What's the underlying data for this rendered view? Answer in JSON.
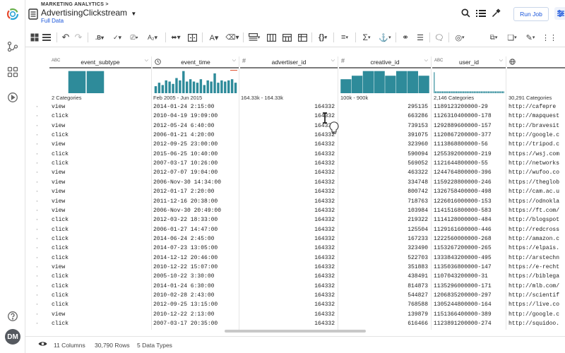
{
  "header": {
    "breadcrumb": "MARKETING ANALYTICS >",
    "title": "AdvertisingClickstream",
    "subtitle": "Full Data",
    "run_job_label": "Run Job"
  },
  "columns": [
    {
      "type_icon": "ABC",
      "name": "event_subtype",
      "summary": "2 Categories"
    },
    {
      "type_icon": "clock",
      "name": "event_time",
      "summary": "Feb 2005 - Jun 2015"
    },
    {
      "type_icon": "#",
      "name": "advertiser_id",
      "summary": "164.33k - 164.33k"
    },
    {
      "type_icon": "#",
      "name": "creative_id",
      "summary": "100k - 900k"
    },
    {
      "type_icon": "ABC",
      "name": "user_id",
      "summary": "2,146 Categories"
    },
    {
      "type_icon": "globe",
      "name": "",
      "summary": "30,291 Categories"
    }
  ],
  "rows": [
    [
      "view",
      "2014-01-24 2:15:00",
      "164332",
      "295135",
      "1189123200000-29",
      "http://cafepre"
    ],
    [
      "click",
      "2010-04-19 19:09:00",
      "164332",
      "663286",
      "1126310400000-178",
      "http://mapquest"
    ],
    [
      "view",
      "2012-05-24 6:40:00",
      "164332",
      "739153",
      "1292889600000-157",
      "http://bravesit"
    ],
    [
      "click",
      "2006-01-21 4:20:00",
      "164332",
      "391075",
      "1120867200000-377",
      "http://google.c"
    ],
    [
      "view",
      "2012-09-25 23:00:00",
      "164332",
      "323960",
      "1113868800000-56",
      "http://tripod.c"
    ],
    [
      "click",
      "2015-06-25 10:40:00",
      "164332",
      "590094",
      "1255392000000-219",
      "https://wsj.com"
    ],
    [
      "click",
      "2007-03-17 10:26:00",
      "164332",
      "569052",
      "1121644800000-55",
      "http://networks"
    ],
    [
      "view",
      "2012-07-07 19:04:00",
      "164332",
      "463322",
      "1244764800000-396",
      "http://wufoo.co"
    ],
    [
      "view",
      "2006-Nov-30 14:34:00",
      "164332",
      "334748",
      "1159228800000-246",
      "https://theglob"
    ],
    [
      "view",
      "2012-01-17 2:20:00",
      "164332",
      "800742",
      "1326758400000-498",
      "http://cam.ac.u"
    ],
    [
      "view",
      "2011-12-16 20:38:00",
      "164332",
      "718763",
      "1226016000000-153",
      "https://odnokla"
    ],
    [
      "view",
      "2006-Nov-30 20:49:00",
      "164332",
      "103984",
      "1141516800000-583",
      "https://ft.com/"
    ],
    [
      "click",
      "2012-03-22 18:33:00",
      "164332",
      "219322",
      "1114128000000-484",
      "http://blogspot"
    ],
    [
      "click",
      "2006-01-27 14:47:00",
      "164332",
      "125504",
      "1129161600000-446",
      "http://redcross"
    ],
    [
      "click",
      "2014-06-24 2:45:00",
      "164332",
      "167233",
      "1222560000000-268",
      "http://amazon.c"
    ],
    [
      "click",
      "2014-07-23 13:05:00",
      "164332",
      "323490",
      "1153267200000-265",
      "https://elpais."
    ],
    [
      "click",
      "2014-12-12 20:46:00",
      "164332",
      "522703",
      "1333843200000-495",
      "http://arstechn"
    ],
    [
      "view",
      "2010-12-22 15:07:00",
      "164332",
      "351883",
      "1135036800000-147",
      "https://e-recht"
    ],
    [
      "click",
      "2005-10-22 3:30:00",
      "164332",
      "438491",
      "1107043200000-31",
      "https://biblega"
    ],
    [
      "click",
      "2014-01-24 6:30:00",
      "164332",
      "814873",
      "1135296000000-171",
      "http://mlb.com/"
    ],
    [
      "click",
      "2010-02-28 2:43:00",
      "164332",
      "544827",
      "1206835200000-297",
      "http://scientif"
    ],
    [
      "click",
      "2012-09-25 13:15:00",
      "164332",
      "768588",
      "1305244800000-164",
      "https://live.co"
    ],
    [
      "view",
      "2010-12-22 2:13:00",
      "164332",
      "139879",
      "1151366400000-389",
      "http://google.c"
    ],
    [
      "click",
      "2007-03-17 20:35:00",
      "164332",
      "616466",
      "1123891200000-274",
      "http://squidoo."
    ]
  ],
  "histograms": {
    "event_subtype": [
      0.95,
      0.95
    ],
    "event_time": [
      0.3,
      0.45,
      0.35,
      0.55,
      0.5,
      0.4,
      0.65,
      0.55,
      0.95,
      0.5,
      0.6,
      0.5,
      0.45,
      0.6,
      0.35,
      0.55,
      0.5,
      0.85,
      0.45,
      0.55,
      0.5,
      0.55,
      0.6,
      0.45
    ],
    "creative_id": [
      0.6,
      0.75,
      0.95,
      0.95,
      0.75,
      0.95,
      0.95,
      0.75
    ],
    "user_id": [
      0.9,
      0.08,
      0.08,
      0.08,
      0.08,
      0.08,
      0.08,
      0.08,
      0.08,
      0.08,
      0.08,
      0.08,
      0.08,
      0.08,
      0.08,
      0.08,
      0.08,
      0.08,
      0.08,
      0.08,
      0.08,
      0.08,
      0.08,
      0.08,
      0.08,
      0.08,
      0.08,
      0.08,
      0.08,
      0.08,
      0.08,
      0.08,
      0.08,
      0.08,
      0.08,
      0.08,
      0.08,
      0.08,
      0.08,
      0.08,
      0.08,
      0.08,
      0.08,
      0.08,
      0.08,
      0.08,
      0.08,
      0.08,
      0.08,
      0.08,
      0.08,
      0.08,
      0.08,
      0.08,
      0.08,
      0.08,
      0.08,
      0.08,
      0.08,
      0.08
    ]
  },
  "footer": {
    "columns": "11 Columns",
    "rows": "30,790 Rows",
    "types": "5 Data Types"
  },
  "avatar": "DM",
  "colors": {
    "accent": "#1a56db",
    "histogram": "#2e8b9a",
    "highlight": "#e0502d"
  }
}
